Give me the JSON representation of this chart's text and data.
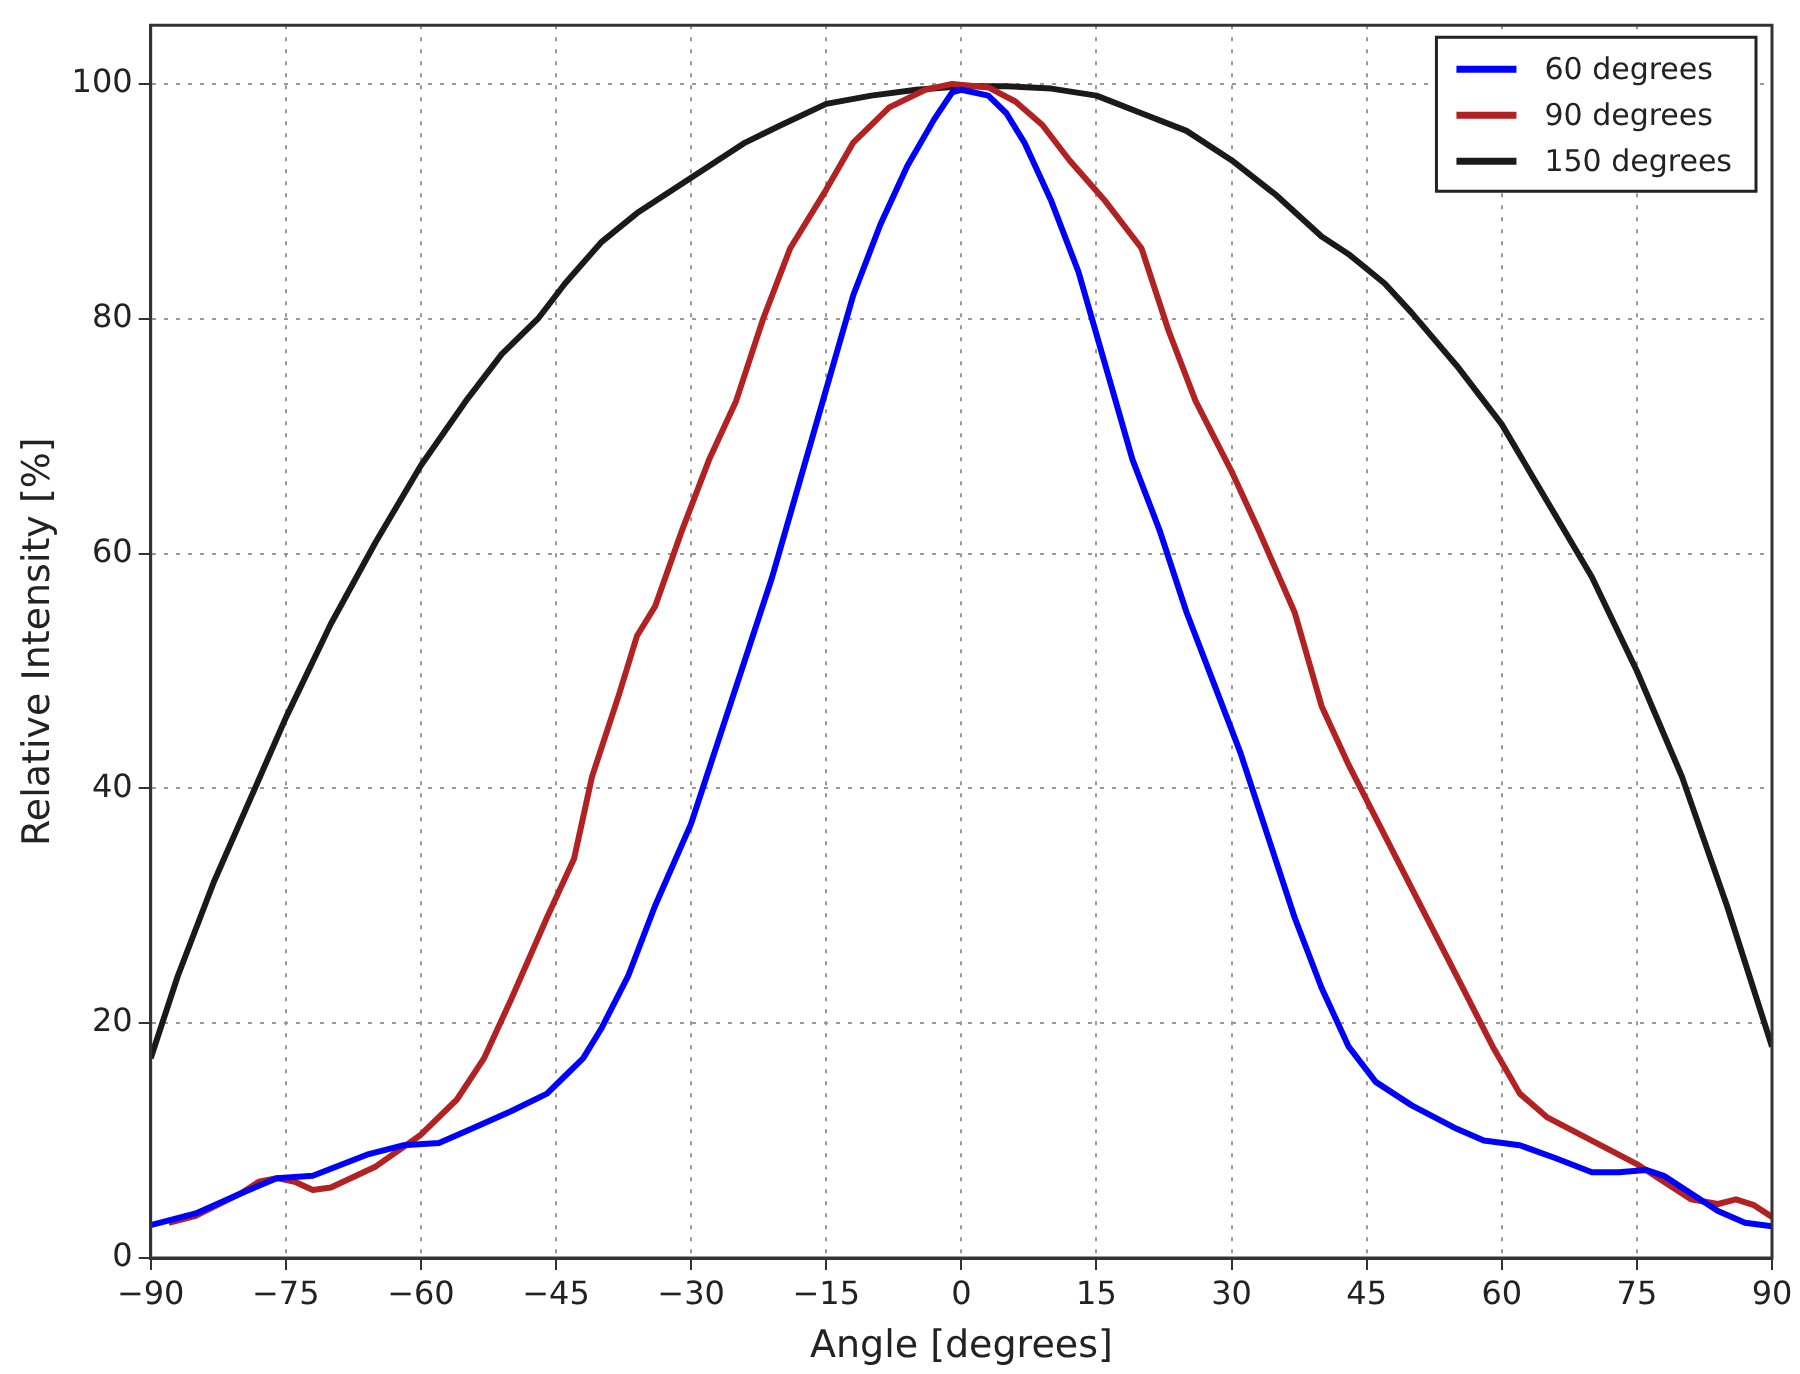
{
  "chart_data": {
    "type": "line",
    "xlabel": "Angle [degrees]",
    "ylabel": "Relative Intensity [%]",
    "xlim": [
      -90,
      90
    ],
    "ylim": [
      0,
      105
    ],
    "xticks": [
      {
        "value": -90,
        "label": "−90"
      },
      {
        "value": -75,
        "label": "−75"
      },
      {
        "value": -60,
        "label": "−60"
      },
      {
        "value": -45,
        "label": "−45"
      },
      {
        "value": -30,
        "label": "−30"
      },
      {
        "value": -15,
        "label": "−15"
      },
      0,
      15,
      30,
      45,
      60,
      75,
      90
    ],
    "yticks": [
      0,
      20,
      40,
      60,
      80,
      100
    ],
    "grid": true,
    "legend": "top right",
    "line_style": "solid",
    "marker": "none",
    "series": [
      {
        "name": "60 degrees",
        "color": "#0000ff",
        "x": [
          -90,
          -85,
          -80,
          -76,
          -72,
          -66,
          -62,
          -58,
          -55,
          -50,
          -46,
          -44,
          -42,
          -40,
          -37,
          -34,
          -30,
          -27,
          -24,
          -21,
          -18,
          -15,
          -12,
          -9,
          -6,
          -3,
          -1,
          0,
          3,
          5,
          7,
          10,
          13,
          16,
          19,
          22,
          25,
          28,
          31,
          34,
          37,
          40,
          43,
          46,
          50,
          55,
          58,
          62,
          66,
          70,
          73,
          76,
          78,
          80,
          84,
          87,
          90
        ],
        "values": [
          2.8,
          3.8,
          5.5,
          6.8,
          7,
          8.8,
          9.6,
          9.8,
          10.8,
          12.5,
          14,
          15.5,
          17,
          19.5,
          24,
          30,
          37,
          44,
          51,
          58,
          66,
          74,
          82,
          88,
          93,
          97,
          99.3,
          99.5,
          99,
          97.5,
          95,
          90,
          84,
          76,
          68,
          62,
          55,
          49,
          43,
          36,
          29,
          23,
          18,
          15,
          13,
          11,
          10,
          9.6,
          8.5,
          7.3,
          7.3,
          7.5,
          7,
          6,
          4,
          3,
          2.7
        ]
      },
      {
        "name": "90 degrees",
        "color": "#b22222",
        "x": [
          -88,
          -85,
          -80,
          -78,
          -76,
          -74,
          -72,
          -70,
          -65,
          -60,
          -56,
          -53,
          -50,
          -46,
          -43,
          -41,
          -38,
          -36,
          -34,
          -31,
          -28,
          -25,
          -22,
          -19,
          -15,
          -12,
          -8,
          -4,
          -1,
          3,
          6,
          9,
          12,
          16,
          20,
          23,
          26,
          30,
          33,
          37,
          40,
          43,
          47,
          51,
          55,
          59,
          62,
          65,
          70,
          75,
          78,
          81,
          84,
          86,
          88,
          90
        ],
        "values": [
          3,
          3.6,
          5.5,
          6.5,
          6.8,
          6.5,
          5.8,
          6,
          7.8,
          10.5,
          13.5,
          17,
          22,
          29,
          34,
          41,
          48,
          53,
          55.5,
          62,
          68,
          73,
          80,
          86,
          91,
          95,
          98,
          99.5,
          100,
          99.7,
          98.5,
          96.5,
          93.5,
          90,
          86,
          79,
          73,
          67,
          62,
          55,
          47,
          42,
          36,
          30,
          24,
          18,
          14,
          12,
          10,
          8,
          6.5,
          5,
          4.6,
          5,
          4.5,
          3.5
        ]
      },
      {
        "name": "150 degrees",
        "color": "#1a1a1a",
        "x": [
          -90,
          -87,
          -83,
          -79,
          -75,
          -70,
          -65,
          -60,
          -55,
          -51,
          -47,
          -44,
          -40,
          -36,
          -32,
          -28,
          -24,
          -20,
          -15,
          -10,
          -5,
          0,
          5,
          10,
          15,
          20,
          25,
          30,
          35,
          40,
          43,
          47,
          50,
          55,
          60,
          65,
          70,
          75,
          80,
          85,
          90
        ],
        "values": [
          17,
          24,
          32,
          39,
          46,
          54,
          61,
          67.5,
          73,
          77,
          80,
          83,
          86.5,
          89,
          91,
          93,
          95,
          96.5,
          98.3,
          99,
          99.5,
          99.8,
          99.8,
          99.6,
          99,
          97.5,
          96,
          93.5,
          90.5,
          87,
          85.5,
          83,
          80.5,
          76,
          71,
          64.5,
          58,
          50,
          41,
          30,
          18
        ]
      }
    ]
  }
}
